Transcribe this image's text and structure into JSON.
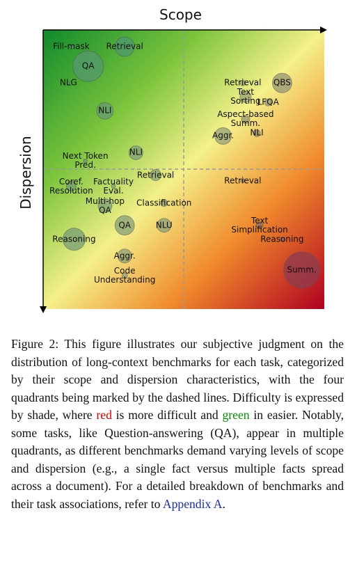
{
  "chart_data": {
    "type": "scatter",
    "xlabel": "Scope",
    "ylabel": "Dispersion",
    "points": [
      {
        "label": "Fill-mask",
        "x": 0.1,
        "y": 0.94,
        "size": 3,
        "difficulty": 0.0
      },
      {
        "label": "Retrieval",
        "x": 0.29,
        "y": 0.94,
        "size": 14,
        "difficulty": 0.05
      },
      {
        "label": "QA",
        "x": 0.16,
        "y": 0.87,
        "size": 22,
        "difficulty": 0.1
      },
      {
        "label": "NLG",
        "x": 0.09,
        "y": 0.81,
        "size": 2,
        "difficulty": 0.05
      },
      {
        "label": "NLI",
        "x": 0.22,
        "y": 0.71,
        "size": 12,
        "difficulty": 0.2
      },
      {
        "label": "Retrieval",
        "x": 0.71,
        "y": 0.81,
        "size": 4,
        "difficulty": 0.5
      },
      {
        "label": "QBS",
        "x": 0.85,
        "y": 0.81,
        "size": 14,
        "difficulty": 0.55
      },
      {
        "label": "Text\nSorting",
        "x": 0.72,
        "y": 0.76,
        "size": 8,
        "difficulty": 0.5
      },
      {
        "label": "LFQA",
        "x": 0.8,
        "y": 0.74,
        "size": 5,
        "difficulty": 0.55
      },
      {
        "label": "Aspect-based\nSumm.",
        "x": 0.72,
        "y": 0.68,
        "size": 6,
        "difficulty": 0.55
      },
      {
        "label": "NLI",
        "x": 0.76,
        "y": 0.63,
        "size": 5,
        "difficulty": 0.6
      },
      {
        "label": "Aggr.",
        "x": 0.64,
        "y": 0.62,
        "size": 12,
        "difficulty": 0.5
      },
      {
        "label": "Next Token\nPred.",
        "x": 0.15,
        "y": 0.53,
        "size": 3,
        "difficulty": 0.2
      },
      {
        "label": "NLI",
        "x": 0.33,
        "y": 0.56,
        "size": 10,
        "difficulty": 0.35
      },
      {
        "label": "Retrieval",
        "x": 0.4,
        "y": 0.48,
        "size": 8,
        "difficulty": 0.4
      },
      {
        "label": "Coref.\nResolution",
        "x": 0.1,
        "y": 0.44,
        "size": 7,
        "difficulty": 0.25
      },
      {
        "label": "Factuality\nEval.",
        "x": 0.25,
        "y": 0.44,
        "size": 3,
        "difficulty": 0.3
      },
      {
        "label": "Multi-hop\nQA",
        "x": 0.22,
        "y": 0.37,
        "size": 10,
        "difficulty": 0.35
      },
      {
        "label": "Classification",
        "x": 0.43,
        "y": 0.38,
        "size": 5,
        "difficulty": 0.45
      },
      {
        "label": "QA",
        "x": 0.29,
        "y": 0.3,
        "size": 14,
        "difficulty": 0.4
      },
      {
        "label": "NLU",
        "x": 0.43,
        "y": 0.3,
        "size": 10,
        "difficulty": 0.45
      },
      {
        "label": "Reasoning",
        "x": 0.11,
        "y": 0.25,
        "size": 16,
        "difficulty": 0.3
      },
      {
        "label": "Aggr.",
        "x": 0.29,
        "y": 0.19,
        "size": 10,
        "difficulty": 0.45
      },
      {
        "label": "Code\nUnderstanding",
        "x": 0.29,
        "y": 0.12,
        "size": 4,
        "difficulty": 0.5
      },
      {
        "label": "Retrieval",
        "x": 0.71,
        "y": 0.46,
        "size": 3,
        "difficulty": 0.7
      },
      {
        "label": "Text\nSimplification",
        "x": 0.77,
        "y": 0.3,
        "size": 5,
        "difficulty": 0.75
      },
      {
        "label": "Reasoning",
        "x": 0.85,
        "y": 0.25,
        "size": 3,
        "difficulty": 0.8
      },
      {
        "label": "Summ.",
        "x": 0.92,
        "y": 0.14,
        "size": 26,
        "difficulty": 1.0
      }
    ],
    "dividers": {
      "x": 0.5,
      "y": 0.5
    },
    "grid": false
  },
  "caption": {
    "part1": "Figure 2: This figure illustrates our subjective judgment on the distribution of long-context benchmarks for each task, categorized by their scope and dispersion characteristics, with the four quadrants being marked by the dashed lines. Difficulty is expressed by shade, where ",
    "red_word": "red",
    "part2": " is more difficult and ",
    "green_word": "green",
    "part3": " in easier. Notably, some tasks, like Question-answering (QA), appear in multiple quadrants, as different benchmarks demand varying levels of scope and dispersion (e.g., a single fact versus multiple facts spread across a document). For a detailed breakdown of benchmarks and their task associations, refer to ",
    "link_text": "Appendix A",
    "part4": "."
  }
}
